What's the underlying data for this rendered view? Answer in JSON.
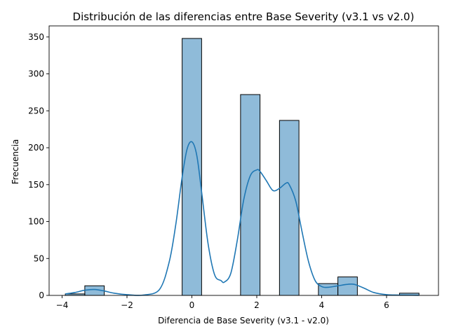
{
  "chart_data": {
    "type": "histogram",
    "title": "Distribución de las diferencias entre Base Severity (v3.1 vs v2.0)",
    "xlabel": "Diferencia de Base Severity (v3.1 - v2.0)",
    "ylabel": "Frecuencia",
    "xlim": [
      -4.4,
      7.6
    ],
    "ylim": [
      0,
      365
    ],
    "xticks": [
      -4,
      -2,
      0,
      2,
      4,
      6
    ],
    "xtick_labels": [
      "−4",
      "−2",
      "0",
      "2",
      "4",
      "6"
    ],
    "yticks": [
      0,
      50,
      100,
      150,
      200,
      250,
      300,
      350
    ],
    "ytick_labels": [
      "0",
      "50",
      "100",
      "150",
      "200",
      "250",
      "300",
      "350"
    ],
    "bar_color": "#1f77b4",
    "bar_alpha": 0.5,
    "kde_color": "#1f77b4",
    "bins": [
      {
        "x0": -3.9,
        "x1": -3.3,
        "count": 2
      },
      {
        "x0": -3.3,
        "x1": -2.7,
        "count": 13
      },
      {
        "x0": -0.3,
        "x1": 0.3,
        "count": 348
      },
      {
        "x0": 1.5,
        "x1": 2.1,
        "count": 272
      },
      {
        "x0": 2.7,
        "x1": 3.3,
        "count": 237
      },
      {
        "x0": 3.9,
        "x1": 4.5,
        "count": 16
      },
      {
        "x0": 4.5,
        "x1": 5.1,
        "count": 25
      },
      {
        "x0": 6.4,
        "x1": 7.0,
        "count": 3
      }
    ],
    "kde": {
      "x": [
        -3.9,
        -3.6,
        -3.3,
        -3.0,
        -2.7,
        -2.4,
        -2.0,
        -1.5,
        -1.0,
        -0.7,
        -0.5,
        -0.3,
        -0.15,
        0.0,
        0.15,
        0.3,
        0.5,
        0.7,
        0.9,
        1.0,
        1.2,
        1.4,
        1.6,
        1.8,
        2.0,
        2.1,
        2.3,
        2.5,
        2.7,
        2.9,
        3.0,
        3.2,
        3.4,
        3.6,
        3.8,
        4.0,
        4.2,
        4.5,
        4.8,
        5.0,
        5.3,
        5.6,
        6.0,
        6.4,
        6.8,
        7.0
      ],
      "y": [
        2,
        4,
        7,
        8,
        6,
        3,
        1,
        0.5,
        8,
        45,
        95,
        160,
        198,
        208,
        190,
        140,
        70,
        28,
        20,
        18,
        30,
        75,
        130,
        162,
        170,
        168,
        155,
        142,
        145,
        152,
        150,
        128,
        85,
        45,
        20,
        12,
        11,
        13,
        15,
        15,
        10,
        4,
        1,
        0.5,
        0.3,
        0.2
      ]
    }
  }
}
